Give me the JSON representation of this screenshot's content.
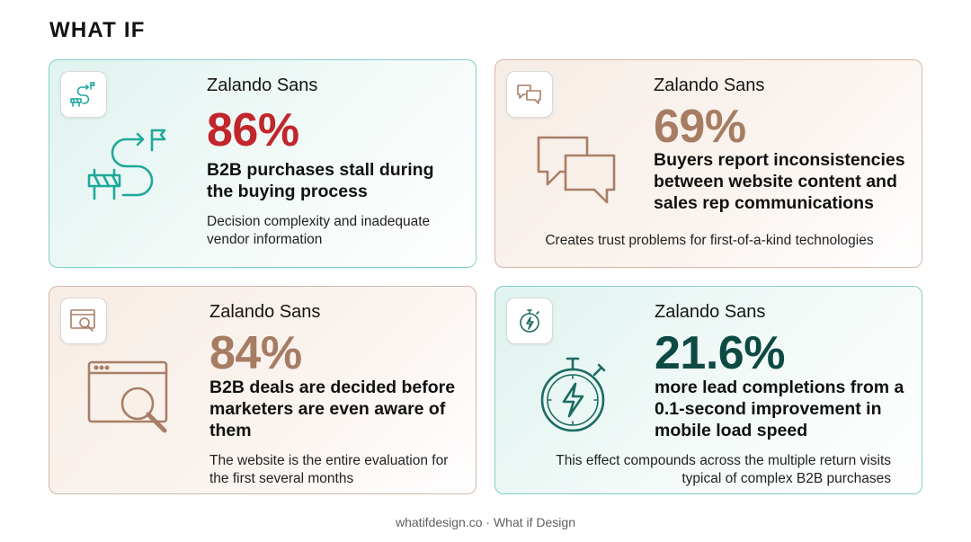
{
  "brand": "WHAT IF",
  "cards": [
    {
      "font_label": "Zalando Sans",
      "stat": "86%",
      "headline": "B2B purchases stall during the buying process",
      "description": "Decision complexity and inadequate vendor information",
      "icon": "roadblock-path-icon",
      "stat_color": "#c1262b"
    },
    {
      "font_label": "Zalando Sans",
      "stat": "69%",
      "headline": "Buyers report inconsistencies between website content and sales rep communications",
      "description": "Creates trust problems for first-of-a-kind technologies",
      "icon": "chat-bubbles-icon",
      "stat_color": "#a67c63"
    },
    {
      "font_label": "Zalando Sans",
      "stat": "84%",
      "headline": "B2B deals are decided before marketers are even aware of them",
      "description": "The website is the entire evaluation for the first several months",
      "icon": "browser-search-icon",
      "stat_color": "#a67c63"
    },
    {
      "font_label": "Zalando Sans",
      "stat": "21.6%",
      "headline": "more lead completions from a 0.1-second improvement in mobile load speed",
      "description": "This effect compounds across the multiple return visits typical of complex B2B purchases",
      "icon": "stopwatch-bolt-icon",
      "stat_color": "#0d4a44"
    }
  ],
  "footer": "whatifdesign.co · What if Design",
  "colors": {
    "teal_border": "#7fd0c6",
    "beige_border": "#d4b8a8",
    "teal_icon": "#1fa99a",
    "brown_icon": "#a87e66"
  }
}
